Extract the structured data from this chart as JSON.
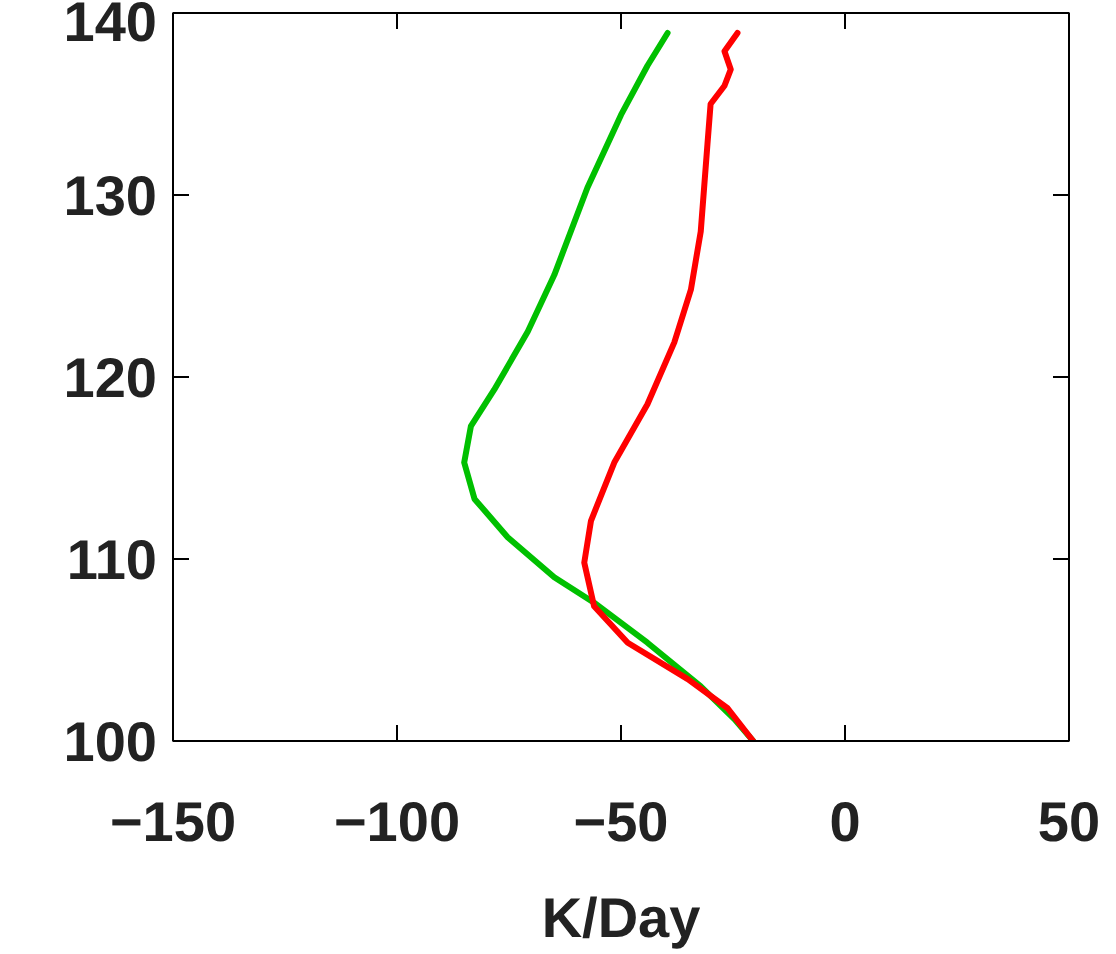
{
  "chart_data": {
    "type": "line",
    "xlabel": "K/Day",
    "xlim": [
      -150,
      50
    ],
    "xticks": [
      -150,
      -100,
      -50,
      0,
      50
    ],
    "ylim": [
      100,
      140
    ],
    "yticks": [
      100,
      110,
      120,
      130,
      140
    ],
    "grid": false,
    "marker": "none",
    "line_style": "solid",
    "series": [
      {
        "color": "#00c000",
        "x": [
          -39.6,
          -44.1,
          -50.0,
          -57.5,
          -64.9,
          -70.8,
          -78.3,
          -83.5,
          -85.0,
          -82.7,
          -75.3,
          -64.9,
          -56.0,
          -44.1,
          -32.2,
          -24.7,
          -20.5
        ],
        "values": [
          138.9,
          137.1,
          134.4,
          130.4,
          125.6,
          122.5,
          119.3,
          117.3,
          115.3,
          113.3,
          111.2,
          109.0,
          107.6,
          105.4,
          103.0,
          101.2,
          100
        ]
      },
      {
        "color": "#ff0000",
        "x": [
          -24.0,
          -26.9,
          -25.5,
          -26.9,
          -30.0,
          -30.7,
          -32.2,
          -34.4,
          -38.1,
          -44.1,
          -51.5,
          -56.7,
          -58.2,
          -56.0,
          -48.5,
          -35.1,
          -26.2,
          -20.5
        ],
        "values": [
          138.9,
          137.9,
          136.9,
          136.0,
          135.0,
          132.8,
          128.0,
          124.8,
          121.9,
          118.5,
          115.3,
          112.1,
          109.8,
          107.4,
          105.4,
          103.4,
          101.8,
          100
        ]
      }
    ]
  }
}
